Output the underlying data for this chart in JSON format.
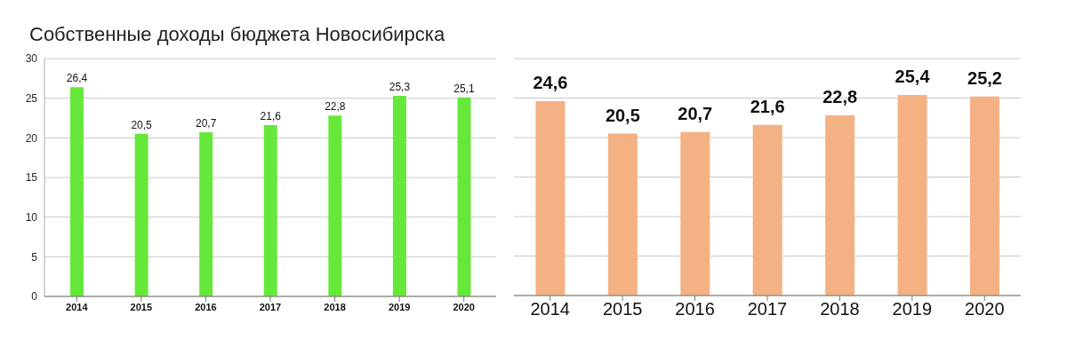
{
  "chart_data": [
    {
      "type": "bar",
      "title": "Собственные доходы бюджета Новосибирска",
      "categories": [
        "2014",
        "2015",
        "2016",
        "2017",
        "2018",
        "2019",
        "2020"
      ],
      "values": [
        26.4,
        20.5,
        20.7,
        21.6,
        22.8,
        25.3,
        25.1
      ],
      "value_labels": [
        "26,4",
        "20,5",
        "20,7",
        "21,6",
        "22,8",
        "25,3",
        "25,1"
      ],
      "color": "#66e83a",
      "ylim": [
        0,
        30
      ],
      "yticks": [
        0,
        5,
        10,
        15,
        20,
        25,
        30
      ],
      "grid": "y"
    },
    {
      "type": "bar",
      "categories": [
        "2014",
        "2015",
        "2016",
        "2017",
        "2018",
        "2019",
        "2020"
      ],
      "values": [
        24.6,
        20.5,
        20.7,
        21.6,
        22.8,
        25.4,
        25.2
      ],
      "value_labels": [
        "24,6",
        "20,5",
        "20,7",
        "21,6",
        "22,8",
        "25,4",
        "25,2"
      ],
      "color": "#f4b183",
      "ylim": [
        0,
        30
      ],
      "yticks": [
        {
          "value": 0,
          "label": null
        },
        {
          "value": 5,
          "label": null
        },
        {
          "value": 10,
          "label": null
        },
        {
          "value": 15,
          "label": null
        },
        {
          "value": 20,
          "label": null
        },
        {
          "value": 25,
          "label": null
        },
        {
          "value": 30,
          "label": null
        }
      ],
      "grid": "y",
      "tick_labels": "x"
    }
  ]
}
